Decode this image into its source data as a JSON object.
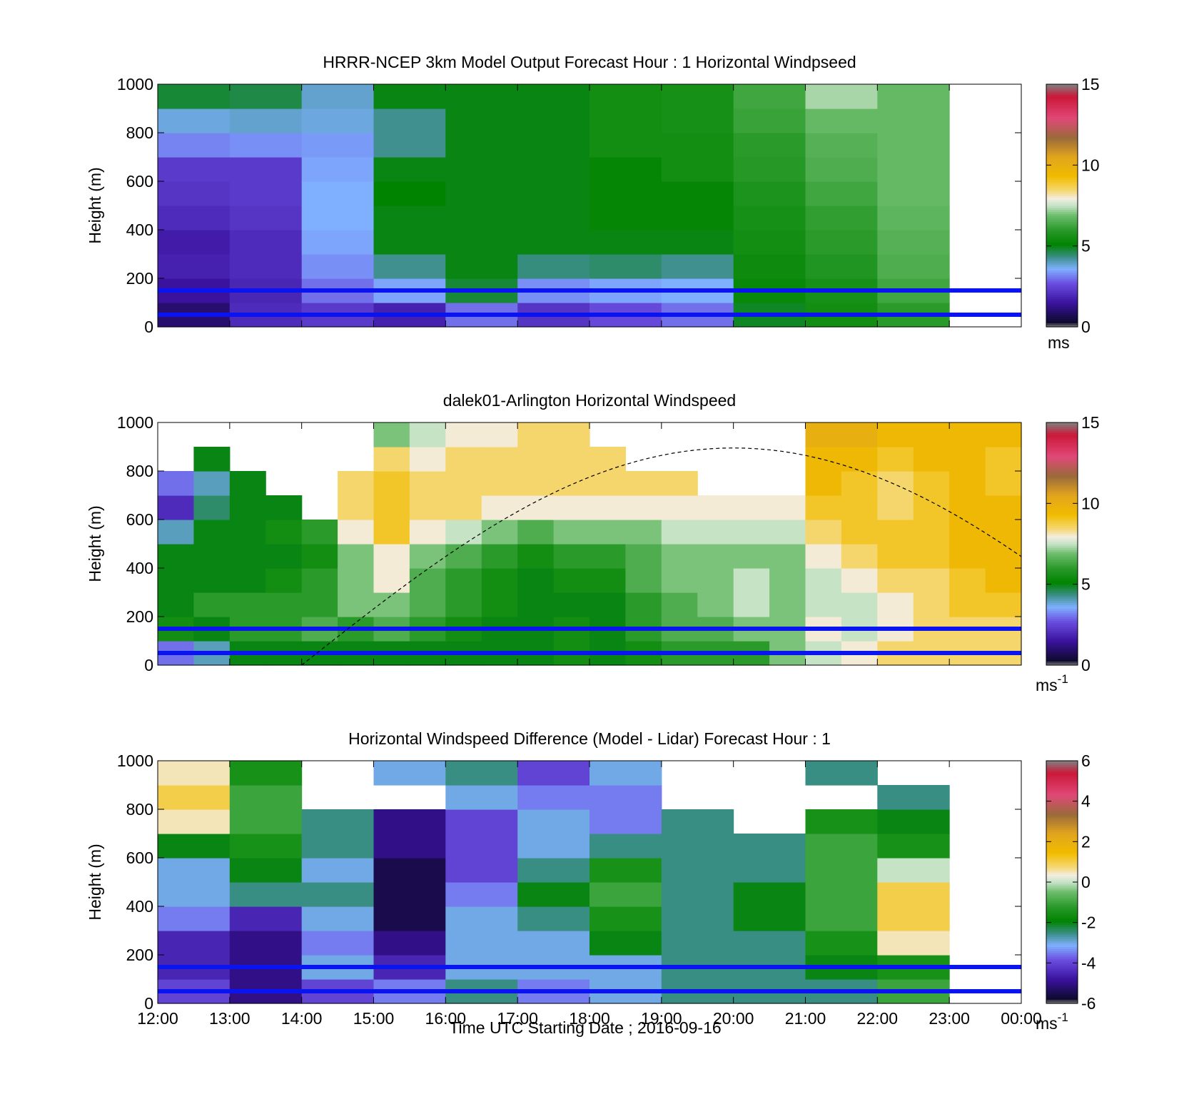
{
  "figure": {
    "xlabel": "Time UTC  Starting Date ; 2016-09-16",
    "x_tick_labels": [
      "12:00",
      "13:00",
      "14:00",
      "15:00",
      "16:00",
      "17:00",
      "18:00",
      "19:00",
      "20:00",
      "21:00",
      "22:00",
      "23:00",
      "00:00"
    ]
  },
  "chart_data": [
    {
      "type": "heatmap",
      "title": "HRRR-NCEP 3km Model Output   Forecast Hour : 1 Horizontal Windpseed",
      "ylabel": "Height (m)",
      "xlim": [
        "12:00",
        "00:00"
      ],
      "ylim": [
        0,
        1000
      ],
      "y_ticks": [
        0,
        200,
        400,
        600,
        800,
        1000
      ],
      "colorbar": {
        "min": 0,
        "max": 15,
        "ticks": [
          0,
          5,
          10,
          15
        ],
        "unit": "ms"
      },
      "reference_heights_m": [
        50,
        150
      ],
      "times": [
        "12:00",
        "13:00",
        "14:00",
        "15:00",
        "16:00",
        "17:00",
        "18:00",
        "19:00",
        "20:00",
        "21:00",
        "22:00"
      ],
      "heights_m": [
        0,
        100,
        200,
        300,
        400,
        500,
        600,
        700,
        800,
        900
      ],
      "wind_speed": [
        [
          1.0,
          1.5,
          1.8,
          1.7,
          2.0,
          2.2,
          2.3,
          3.2,
          3.8,
          4.8
        ],
        [
          2.0,
          1.9,
          2.0,
          2.0,
          2.2,
          2.3,
          2.3,
          3.3,
          3.9,
          4.7
        ],
        [
          2.3,
          3.0,
          3.3,
          3.5,
          3.6,
          3.6,
          3.5,
          3.4,
          3.8,
          3.9
        ],
        [
          1.8,
          3.5,
          4.3,
          5.0,
          5.0,
          5.1,
          5.0,
          4.3,
          4.3,
          5.0
        ],
        [
          3.0,
          4.8,
          5.0,
          5.0,
          5.0,
          5.0,
          5.0,
          5.0,
          5.0,
          5.0
        ],
        [
          2.2,
          3.3,
          4.4,
          5.0,
          5.0,
          5.0,
          5.0,
          5.0,
          5.0,
          5.0
        ],
        [
          2.6,
          3.5,
          4.5,
          5.0,
          5.2,
          5.2,
          5.2,
          5.5,
          5.5,
          5.5
        ],
        [
          3.0,
          3.6,
          4.3,
          5.0,
          5.2,
          5.2,
          5.5,
          5.5,
          5.6,
          5.6
        ],
        [
          4.9,
          5.3,
          5.4,
          5.5,
          5.6,
          5.7,
          5.9,
          6.0,
          6.2,
          6.3
        ],
        [
          5.5,
          5.6,
          5.8,
          6.0,
          6.1,
          6.3,
          6.5,
          6.6,
          6.8,
          7.3
        ],
        [
          6.0,
          6.3,
          6.5,
          6.6,
          6.7,
          6.8,
          6.8,
          6.8,
          6.8,
          6.8
        ]
      ]
    },
    {
      "type": "heatmap",
      "title": "dalek01-Arlington  Horizontal Windspeed",
      "ylabel": "Height (m)",
      "xlim": [
        "12:00",
        "00:00"
      ],
      "ylim": [
        0,
        1000
      ],
      "y_ticks": [
        0,
        200,
        400,
        600,
        800,
        1000
      ],
      "colorbar": {
        "min": 0,
        "max": 15,
        "ticks": [
          0,
          5,
          10,
          15
        ],
        "unit": "ms-1"
      },
      "reference_heights_m": [
        50,
        150
      ],
      "times": [
        "12:00",
        "12:30",
        "13:00",
        "13:30",
        "14:00",
        "14:30",
        "15:00",
        "15:30",
        "16:00",
        "16:30",
        "17:00",
        "17:30",
        "18:00",
        "18:30",
        "19:00",
        "19:30",
        "20:00",
        "20:30",
        "21:00",
        "21:30",
        "22:00",
        "22:30",
        "23:00",
        "23:30"
      ],
      "heights_m": [
        0,
        100,
        200,
        300,
        400,
        500,
        600,
        700,
        800,
        900
      ],
      "wind_speed": [
        [
          3.0,
          5.5,
          5.0,
          5.0,
          5.0,
          4.0,
          2.0,
          3.0,
          null,
          null
        ],
        [
          4.0,
          5.0,
          6.0,
          5.0,
          5.0,
          5.0,
          4.5,
          4.0,
          5.0,
          null
        ],
        [
          5.0,
          6.0,
          6.0,
          5.0,
          5.0,
          5.0,
          5.0,
          5.0,
          null,
          null
        ],
        [
          5.0,
          6.0,
          6.0,
          5.5,
          5.0,
          5.5,
          5.0,
          null,
          null,
          null
        ],
        [
          5.0,
          6.5,
          6.0,
          6.0,
          5.5,
          6.0,
          null,
          null,
          null,
          null
        ],
        [
          5.0,
          6.0,
          7.0,
          7.0,
          7.0,
          8.0,
          8.5,
          8.5,
          null,
          null
        ],
        [
          5.0,
          6.5,
          7.0,
          8.0,
          8.0,
          9.0,
          9.0,
          9.0,
          8.5,
          7.0
        ],
        [
          5.0,
          6.0,
          6.5,
          6.5,
          7.0,
          8.0,
          8.5,
          8.5,
          8.0,
          7.5
        ],
        [
          5.0,
          5.5,
          6.0,
          6.0,
          6.5,
          7.5,
          8.5,
          8.5,
          8.5,
          8.0
        ],
        [
          5.0,
          5.0,
          5.5,
          5.5,
          6.0,
          7.0,
          8.0,
          8.5,
          8.5,
          8.0
        ],
        [
          5.0,
          5.0,
          5.0,
          5.0,
          5.5,
          6.5,
          8.0,
          8.5,
          8.5,
          8.5
        ],
        [
          5.5,
          5.5,
          5.0,
          5.5,
          6.0,
          7.0,
          8.0,
          8.5,
          8.5,
          8.5
        ],
        [
          5.0,
          5.0,
          5.0,
          5.5,
          6.0,
          7.0,
          8.0,
          8.5,
          8.5,
          null
        ],
        [
          5.5,
          6.0,
          6.0,
          6.5,
          6.5,
          7.0,
          8.0,
          8.5,
          null,
          null
        ],
        [
          6.0,
          6.5,
          6.5,
          7.0,
          7.0,
          7.5,
          8.0,
          8.5,
          null,
          null
        ],
        [
          6.0,
          6.5,
          7.0,
          7.0,
          7.0,
          7.5,
          8.0,
          null,
          null,
          null
        ],
        [
          6.0,
          7.0,
          7.5,
          7.5,
          7.0,
          7.5,
          8.0,
          null,
          null,
          null
        ],
        [
          7.0,
          7.0,
          7.0,
          7.0,
          7.0,
          7.5,
          8.0,
          null,
          null,
          null
        ],
        [
          7.5,
          8.0,
          7.5,
          7.5,
          8.0,
          8.5,
          9.0,
          9.5,
          9.5,
          10.0
        ],
        [
          8.0,
          7.5,
          7.5,
          8.0,
          8.5,
          9.0,
          9.0,
          9.0,
          9.5,
          10.0
        ],
        [
          8.5,
          8.0,
          8.0,
          8.5,
          9.0,
          9.0,
          8.5,
          8.5,
          9.0,
          9.5
        ],
        [
          8.5,
          8.5,
          8.5,
          8.5,
          9.0,
          9.0,
          9.0,
          9.0,
          9.5,
          9.5
        ],
        [
          8.5,
          8.5,
          9.0,
          9.0,
          9.5,
          9.5,
          9.5,
          9.5,
          9.5,
          9.5
        ],
        [
          8.5,
          8.5,
          9.0,
          9.5,
          9.5,
          9.5,
          9.5,
          9.0,
          9.0,
          9.5
        ]
      ]
    },
    {
      "type": "heatmap",
      "title": "Horizontal Windspeed Difference (Model - Lidar) Forecast Hour : 1",
      "ylabel": "Height (m)",
      "xlabel": "Time UTC  Starting Date ; 2016-09-16",
      "xlim": [
        "12:00",
        "00:00"
      ],
      "ylim": [
        0,
        1000
      ],
      "y_ticks": [
        0,
        200,
        400,
        600,
        800,
        1000
      ],
      "colorbar": {
        "min": -6,
        "max": 6,
        "ticks": [
          -6,
          -4,
          -2,
          0,
          2,
          4,
          6
        ],
        "unit": "ms-1"
      },
      "reference_heights_m": [
        50,
        150
      ],
      "times": [
        "12:00",
        "13:00",
        "14:00",
        "15:00",
        "16:00",
        "17:00",
        "18:00",
        "19:00",
        "20:00",
        "21:00",
        "22:00"
      ],
      "heights_m": [
        0,
        100,
        200,
        300,
        400,
        500,
        600,
        700,
        800,
        900
      ],
      "difference": [
        [
          -4.0,
          -4.5,
          -4.5,
          -3.5,
          -3.0,
          -3.0,
          -2.0,
          0.5,
          1.0,
          0.5
        ],
        [
          -5.0,
          -5.0,
          -5.0,
          -4.5,
          -2.5,
          -2.0,
          -1.5,
          -1.0,
          -1.0,
          -1.5
        ],
        [
          -4.0,
          -3.0,
          -3.5,
          -3.0,
          -2.5,
          -3.0,
          -2.5,
          -2.5,
          null,
          null
        ],
        [
          -3.5,
          -4.5,
          -5.0,
          -5.5,
          -5.5,
          -5.5,
          -5.0,
          -5.0,
          null,
          -3.0
        ],
        [
          -2.5,
          -3.0,
          -3.0,
          -3.0,
          -3.5,
          -4.0,
          -4.0,
          -4.0,
          -3.0,
          -2.5
        ],
        [
          -3.5,
          -3.0,
          -3.0,
          -2.5,
          -2.0,
          -2.5,
          -3.0,
          -3.0,
          -3.5,
          -4.0
        ],
        [
          -3.0,
          -3.0,
          -2.0,
          -1.5,
          -1.0,
          -1.5,
          -2.5,
          -3.5,
          -3.5,
          -3.0
        ],
        [
          -2.5,
          -2.5,
          -2.5,
          -2.5,
          -2.5,
          -2.5,
          -2.5,
          -2.5,
          null,
          null
        ],
        [
          -2.5,
          -2.5,
          -2.5,
          -2.0,
          -2.0,
          -2.5,
          -2.5,
          null,
          null,
          null
        ],
        [
          -2.5,
          -2.0,
          -1.5,
          -1.0,
          -1.0,
          -1.0,
          -1.0,
          -1.5,
          null,
          -2.5
        ],
        [
          -1.0,
          -1.5,
          0.5,
          1.0,
          1.0,
          0.0,
          -1.5,
          -2.0,
          -2.5,
          null
        ]
      ]
    }
  ]
}
